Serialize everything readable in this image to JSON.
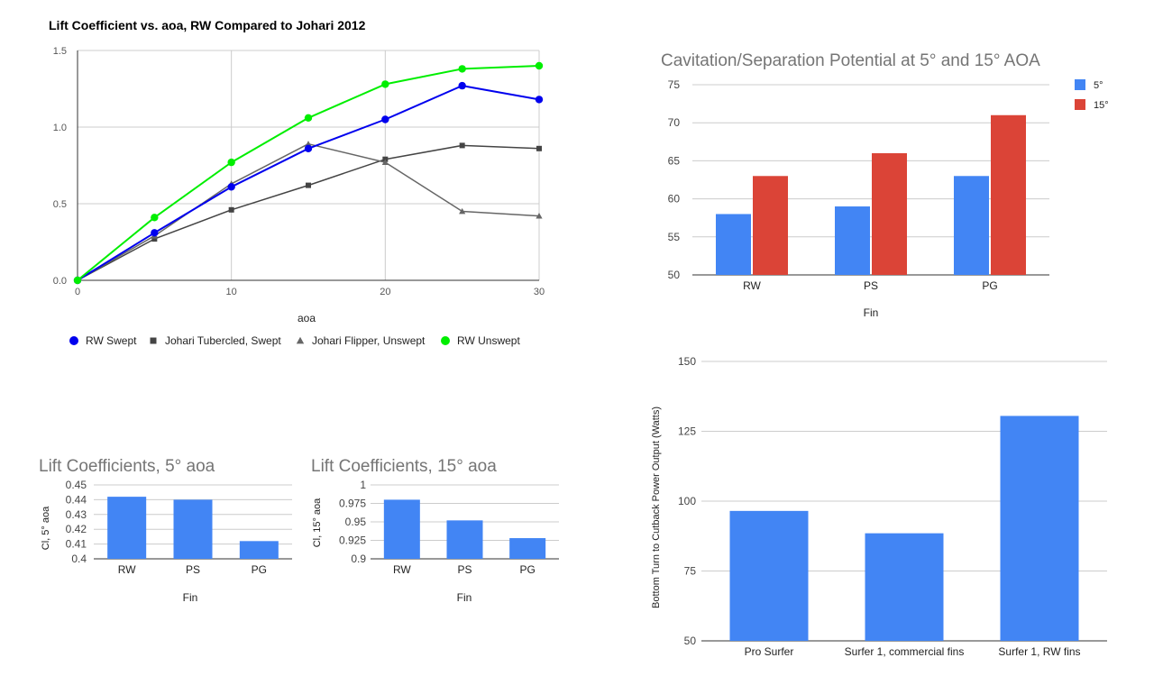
{
  "colors": {
    "rw_swept": "#0000ee",
    "johari_tubercled": "#444444",
    "johari_flipper": "#666666",
    "rw_unswept": "#00ee00",
    "bar_blue": "#4285f4",
    "bar_red": "#db4437",
    "grid": "#cccccc",
    "axis_text": "#555555",
    "title_gray": "#757575"
  },
  "chart_data": [
    {
      "id": "lift_vs_aoa",
      "type": "line",
      "title": "Lift Coefficient vs. aoa, RW Compared to Johari 2012",
      "xlabel": "aoa",
      "ylabel": "",
      "xlim": [
        0,
        30
      ],
      "ylim": [
        0,
        1.5
      ],
      "x_ticks": [
        "0",
        "10",
        "20",
        "30"
      ],
      "y_ticks": [
        "0.0",
        "0.5",
        "1.0",
        "1.5"
      ],
      "grid": true,
      "legend_position": "bottom",
      "series": [
        {
          "name": "RW Swept",
          "marker": "circle",
          "x": [
            0,
            5,
            10,
            15,
            20,
            25,
            30
          ],
          "values": [
            0,
            0.31,
            0.61,
            0.86,
            1.05,
            1.27,
            1.18
          ]
        },
        {
          "name": "Johari Tubercled, Swept",
          "marker": "square",
          "x": [
            0,
            5,
            10,
            15,
            20,
            25,
            30
          ],
          "values": [
            0,
            0.27,
            0.46,
            0.62,
            0.79,
            0.88,
            0.86
          ]
        },
        {
          "name": "Johari Flipper, Unswept",
          "marker": "triangle",
          "x": [
            0,
            5,
            10,
            15,
            20,
            25,
            30
          ],
          "values": [
            0,
            0.29,
            0.63,
            0.89,
            0.77,
            0.45,
            0.42
          ]
        },
        {
          "name": "RW Unswept",
          "marker": "circle",
          "x": [
            0,
            5,
            10,
            15,
            20,
            25,
            30
          ],
          "values": [
            0,
            0.41,
            0.77,
            1.06,
            1.28,
            1.38,
            1.4
          ]
        }
      ]
    },
    {
      "id": "cavitation",
      "type": "bar",
      "title": "Cavitation/Separation Potential at 5° and 15° AOA",
      "xlabel": "Fin",
      "ylabel": "",
      "categories": [
        "RW",
        "PS",
        "PG"
      ],
      "ylim": [
        50,
        75
      ],
      "y_ticks": [
        "50",
        "55",
        "60",
        "65",
        "70",
        "75"
      ],
      "grid": true,
      "legend_position": "right",
      "series": [
        {
          "name": "5°",
          "values": [
            58,
            59,
            63
          ]
        },
        {
          "name": "15°",
          "values": [
            63,
            66,
            71
          ]
        }
      ]
    },
    {
      "id": "lift_5",
      "type": "bar",
      "title": "Lift Coefficients, 5° aoa",
      "xlabel": "Fin",
      "ylabel": "Cl, 5° aoa",
      "categories": [
        "RW",
        "PS",
        "PG"
      ],
      "ylim": [
        0.4,
        0.45
      ],
      "y_ticks": [
        "0.4",
        "0.41",
        "0.42",
        "0.43",
        "0.44",
        "0.45"
      ],
      "grid": true,
      "values": [
        0.442,
        0.44,
        0.412
      ]
    },
    {
      "id": "lift_15",
      "type": "bar",
      "title": "Lift Coefficients, 15° aoa",
      "xlabel": "Fin",
      "ylabel": "Cl, 15° aoa",
      "categories": [
        "RW",
        "PS",
        "PG"
      ],
      "ylim": [
        0.9,
        1
      ],
      "y_ticks": [
        "0.9",
        "0.925",
        "0.95",
        "0.975",
        "1"
      ],
      "grid": true,
      "values": [
        0.98,
        0.952,
        0.928
      ]
    },
    {
      "id": "power",
      "type": "bar",
      "title": "",
      "xlabel": "",
      "ylabel": "Bottom Turn to Cutback Power Output (Watts)",
      "categories": [
        "Pro Surfer",
        "Surfer 1, commercial fins",
        "Surfer 1, RW fins"
      ],
      "ylim": [
        50,
        150
      ],
      "y_ticks": [
        "50",
        "75",
        "100",
        "125",
        "150"
      ],
      "grid": true,
      "values": [
        96.5,
        88.5,
        130.5
      ]
    }
  ]
}
